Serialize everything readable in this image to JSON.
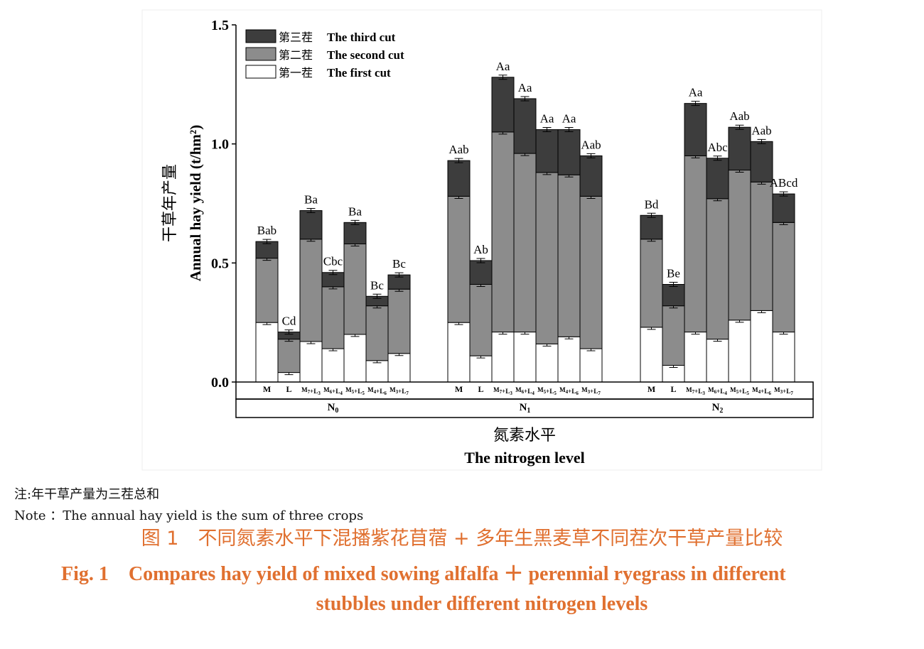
{
  "chart_data": {
    "type": "bar",
    "stacked": true,
    "ylabel_cn": "干草年产量",
    "ylabel": "Annual hay yield (t/hm²)",
    "xlabel_cn": "氮素水平",
    "xlabel": "The nitrogen level",
    "ylim": [
      0,
      1.5
    ],
    "yticks": [
      "0.0",
      "0.5",
      "1.0",
      "1.5"
    ],
    "legend_position": "top-left",
    "legend": [
      {
        "cn": "第三茬",
        "en": "The third cut",
        "color": "#3d3d3d"
      },
      {
        "cn": "第二茬",
        "en": "The second cut",
        "color": "#8c8c8c"
      },
      {
        "cn": "第一茬",
        "en": "The first cut",
        "color": "#ffffff"
      }
    ],
    "groups": [
      {
        "label": "N0",
        "categories": [
          "M",
          "L",
          "M7+L3",
          "M6+L4",
          "M5+L5",
          "M4+L6",
          "M3+L7"
        ],
        "first_cut": [
          0.25,
          0.04,
          0.17,
          0.14,
          0.2,
          0.09,
          0.12
        ],
        "second_cut": [
          0.27,
          0.14,
          0.43,
          0.26,
          0.38,
          0.23,
          0.27
        ],
        "third_cut": [
          0.07,
          0.03,
          0.12,
          0.06,
          0.09,
          0.04,
          0.06
        ],
        "letters": [
          "Bab",
          "Cd",
          "Ba",
          "Cbc",
          "Ba",
          "Bc",
          "Bc"
        ]
      },
      {
        "label": "N1",
        "categories": [
          "M",
          "L",
          "M7+L3",
          "M6+L4",
          "M5+L5",
          "M4+L6",
          "M3+L7"
        ],
        "first_cut": [
          0.25,
          0.11,
          0.21,
          0.21,
          0.16,
          0.19,
          0.14
        ],
        "second_cut": [
          0.53,
          0.3,
          0.84,
          0.75,
          0.72,
          0.68,
          0.64
        ],
        "third_cut": [
          0.15,
          0.1,
          0.23,
          0.23,
          0.18,
          0.19,
          0.17
        ],
        "letters": [
          "Aab",
          "Ab",
          "Aa",
          "Aa",
          "Aa",
          "Aa",
          "Aab"
        ]
      },
      {
        "label": "N2",
        "categories": [
          "M",
          "L",
          "M7+L3",
          "M6+L4",
          "M5+L5",
          "M4+L6",
          "M3+L7"
        ],
        "first_cut": [
          0.23,
          0.07,
          0.21,
          0.18,
          0.26,
          0.3,
          0.21
        ],
        "second_cut": [
          0.37,
          0.25,
          0.74,
          0.59,
          0.63,
          0.54,
          0.46
        ],
        "third_cut": [
          0.1,
          0.09,
          0.22,
          0.17,
          0.18,
          0.17,
          0.12
        ],
        "letters": [
          "Bd",
          "Be",
          "Aa",
          "Abc",
          "Aab",
          "Aab",
          "ABcd"
        ]
      }
    ]
  },
  "note_cn": "注:年干草产量为三茬总和",
  "note_en": "Note ：The annual hay yield is the sum of three crops",
  "caption_cn": "图 1　不同氮素水平下混播紫花苜蓿 + 多年生黑麦草不同茬次干草产量比较",
  "caption_en_line1": "Fig. 1　Compares hay yield of mixed sowing alfalfa ＋ perennial ryegrass in different",
  "caption_en_line2": "stubbles under different nitrogen levels"
}
